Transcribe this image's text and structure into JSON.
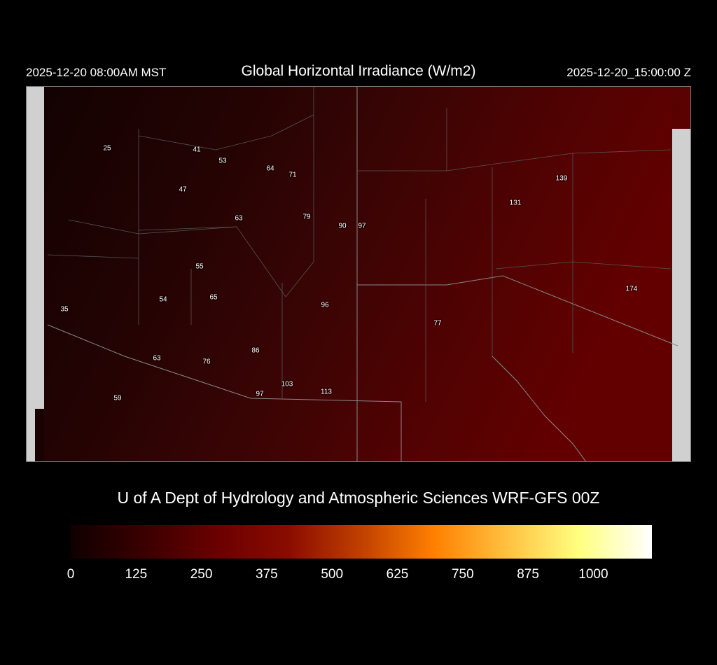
{
  "header": {
    "title": "Global Horizontal Irradiance (W/m2)",
    "local_time": "2025-12-20 08:00AM MST",
    "utc_time": "2025-12-20_15:00:00 Z"
  },
  "map": {
    "stations": [
      "25",
      "41",
      "53",
      "64",
      "71",
      "47",
      "63",
      "79",
      "90",
      "97",
      "139",
      "131",
      "55",
      "54",
      "65",
      "96",
      "174",
      "35",
      "77",
      "86",
      "63",
      "76",
      "103",
      "97",
      "113",
      "59"
    ]
  },
  "credit": "U of A Dept of Hydrology and Atmospheric Sciences WRF-GFS 00Z",
  "colorbar": {
    "ticks": [
      "0",
      "125",
      "250",
      "375",
      "500",
      "625",
      "750",
      "875",
      "1000"
    ],
    "colors": [
      "#100000",
      "#3a0000",
      "#6a0000",
      "#8a0c00",
      "#c04000",
      "#ff8000",
      "#ffc040",
      "#ffff80",
      "#ffffff"
    ]
  }
}
